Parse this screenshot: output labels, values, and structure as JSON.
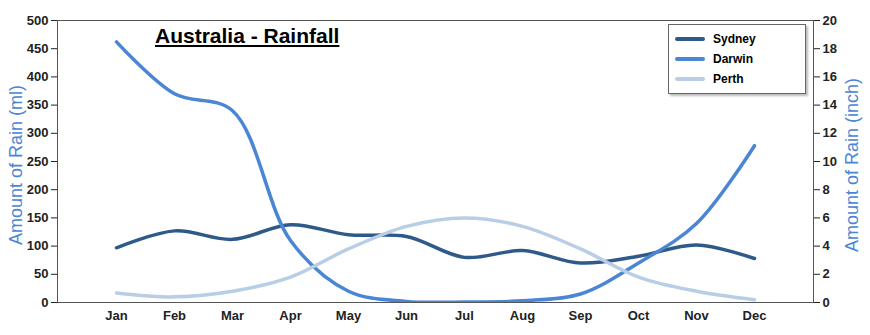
{
  "chart_data": {
    "type": "line",
    "title": "Australia - Rainfall",
    "categories": [
      "Jan",
      "Feb",
      "Mar",
      "Apr",
      "May",
      "Jun",
      "Jul",
      "Aug",
      "Sep",
      "Oct",
      "Nov",
      "Dec"
    ],
    "series": [
      {
        "name": "Sydney",
        "color": "#2e5a8a",
        "values": [
          97,
          127,
          112,
          138,
          120,
          117,
          80,
          92,
          70,
          82,
          102,
          78
        ]
      },
      {
        "name": "Darwin",
        "color": "#4a86d4",
        "values": [
          462,
          370,
          340,
          110,
          20,
          2,
          1,
          3,
          15,
          70,
          140,
          278
        ]
      },
      {
        "name": "Perth",
        "color": "#b8cde6",
        "values": [
          17,
          10,
          20,
          45,
          95,
          135,
          150,
          135,
          95,
          45,
          20,
          5
        ]
      }
    ],
    "ylabel": "Amount of Rain (ml)",
    "y2label": "Amount of Rain (inch)",
    "ylim": [
      0,
      500
    ],
    "yticks": [
      0,
      50,
      100,
      150,
      200,
      250,
      300,
      350,
      400,
      450,
      500
    ],
    "y2lim": [
      0,
      20
    ],
    "y2ticks": [
      0,
      2,
      4,
      6,
      8,
      10,
      12,
      14,
      16,
      18,
      20
    ],
    "legend": "top-right",
    "grid": false
  }
}
